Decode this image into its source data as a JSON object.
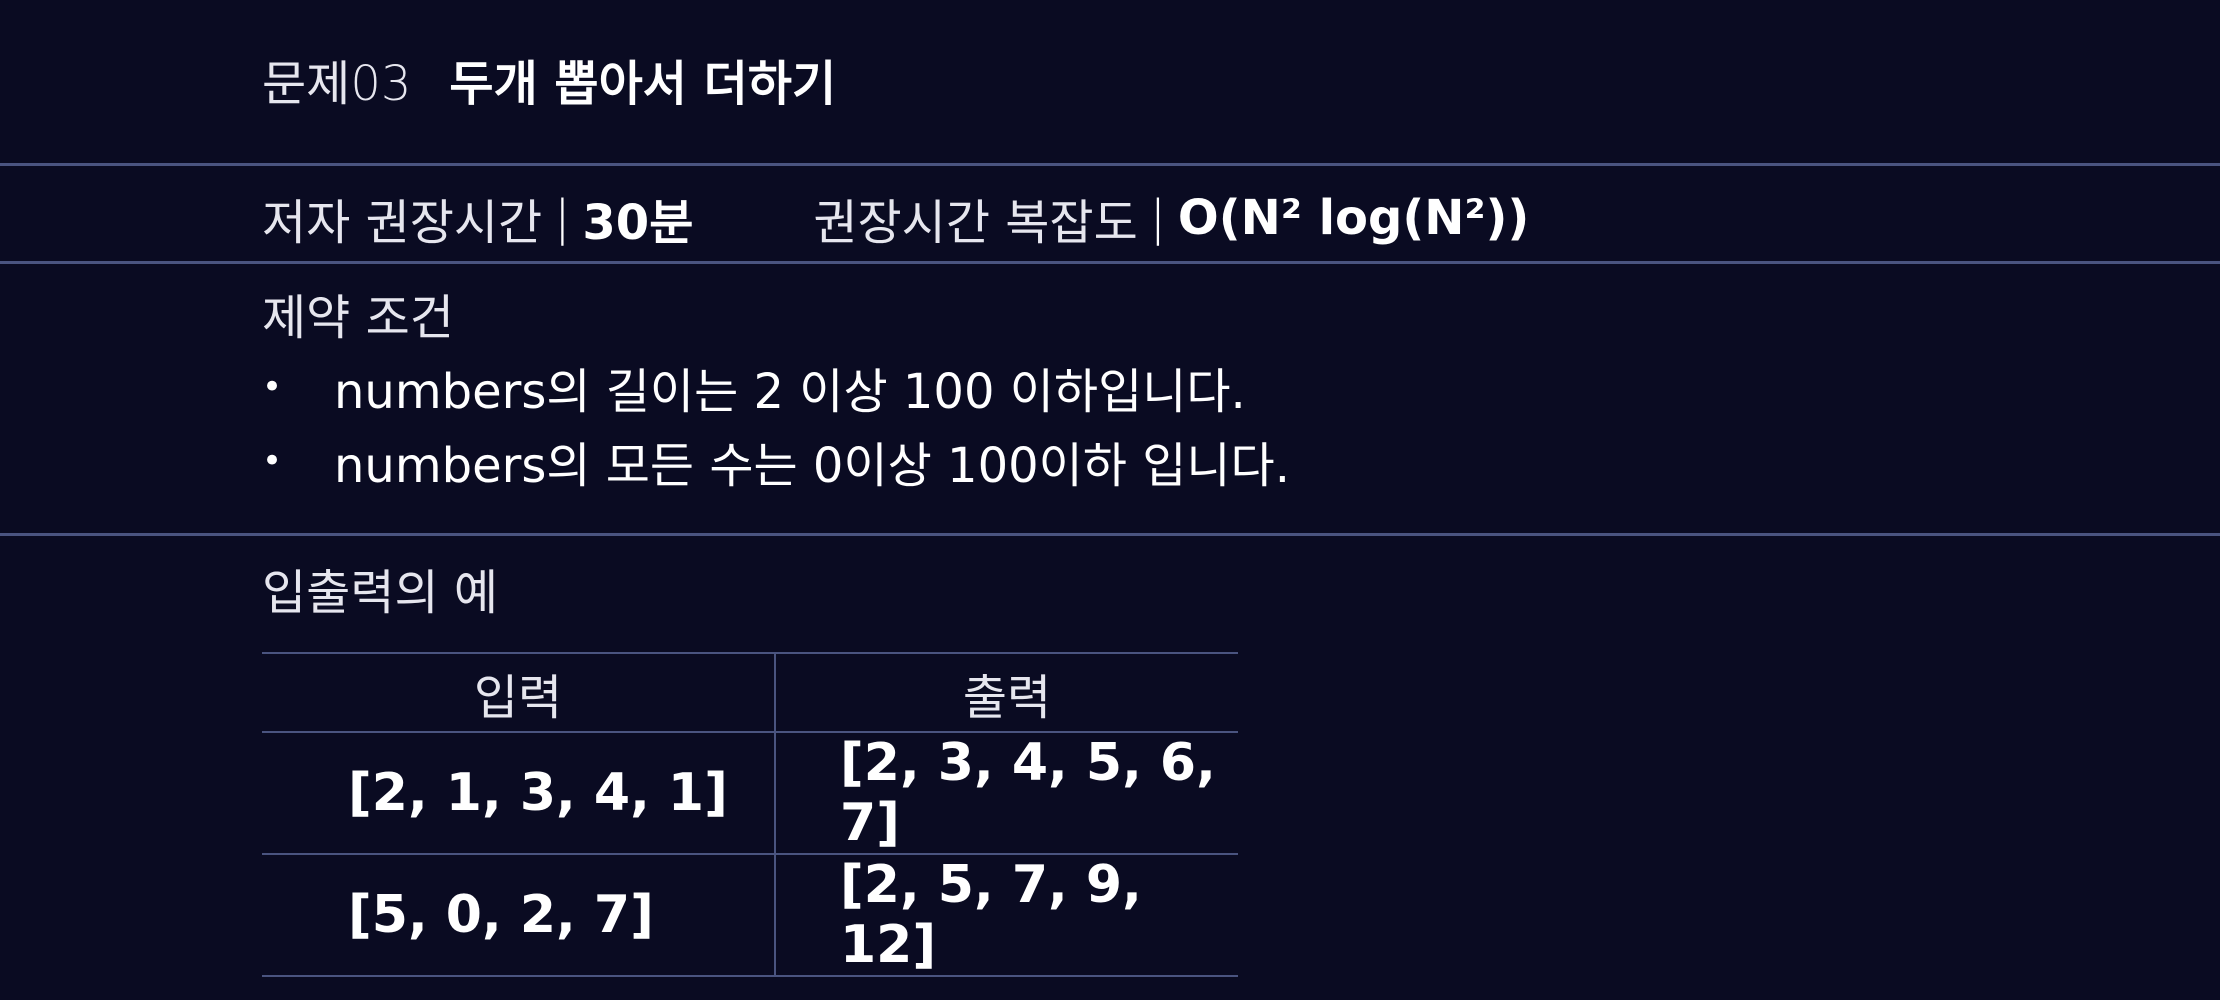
{
  "problem": {
    "number_label": "문제03",
    "title": "두개 뽑아서 더하기"
  },
  "meta": {
    "author_time_label": "저자 권장시간",
    "author_time_value": "30분",
    "complexity_label": "권장시간 복잡도",
    "complexity_value": "O(N² log(N²))",
    "separator": "|"
  },
  "constraints": {
    "heading": "제약 조건",
    "bullet": "•",
    "items": [
      "numbers의 길이는 2 이상 100 이하입니다.",
      "numbers의 모든 수는 0이상 100이하 입니다."
    ]
  },
  "examples": {
    "heading": "입출력의 예",
    "columns": [
      "입력",
      "출력"
    ],
    "rows": [
      {
        "input": "[2, 1, 3, 4, 1]",
        "output": "[2, 3, 4, 5, 6, 7]"
      },
      {
        "input": "[5, 0, 2, 7]",
        "output": "[2, 5, 7,  9, 12]"
      }
    ]
  },
  "colors": {
    "background": "#0a0b22",
    "divider": "#4a5480",
    "text": "#ffffff"
  }
}
